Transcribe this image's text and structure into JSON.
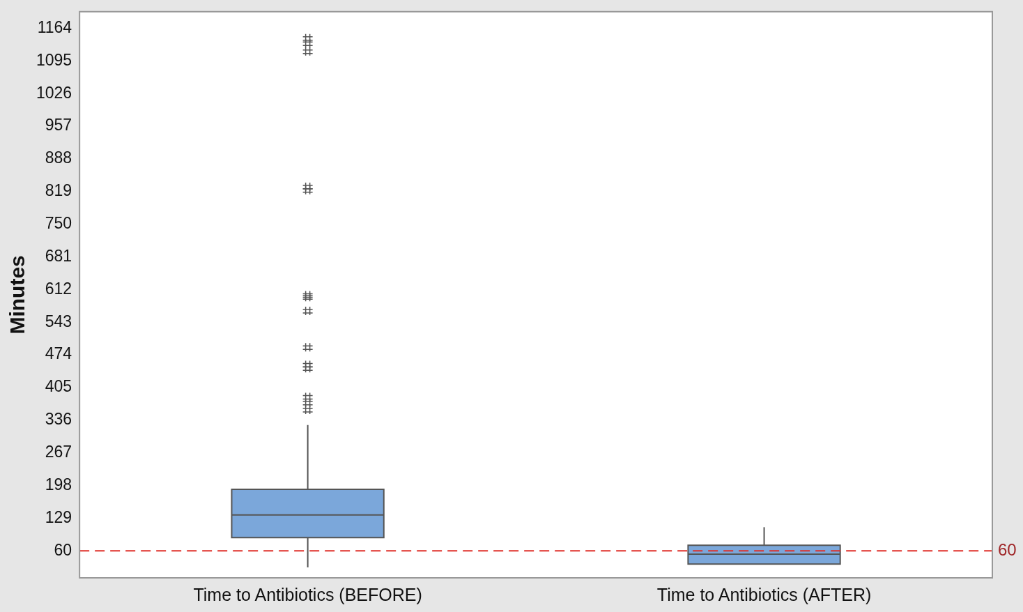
{
  "chart_data": {
    "type": "box",
    "ylabel": "Minutes",
    "categories": [
      "Time to Antibiotics (BEFORE)",
      "Time to Antibiotics (AFTER)"
    ],
    "color": "#7ba7da",
    "boxes": [
      {
        "low": 25,
        "q1": 88,
        "median": 136,
        "q3": 190,
        "high": 326,
        "outliers": [
          358,
          373,
          385,
          446,
          453,
          490,
          567,
          596,
          600,
          822,
          829,
          1115,
          1132,
          1143
        ]
      },
      {
        "low": 32,
        "q1": 32,
        "median": 53,
        "q3": 72,
        "high": 110
      }
    ],
    "ylim": [
      3,
      1199
    ],
    "yticks": [
      60,
      129,
      198,
      267,
      336,
      405,
      474,
      543,
      612,
      681,
      750,
      819,
      888,
      957,
      1026,
      1095,
      1164
    ],
    "ref_lines": [
      {
        "axis": "y",
        "value": 60,
        "label": "60",
        "color": "#e0302a",
        "line_style": "dashed"
      }
    ],
    "grid": false,
    "legend": false
  }
}
